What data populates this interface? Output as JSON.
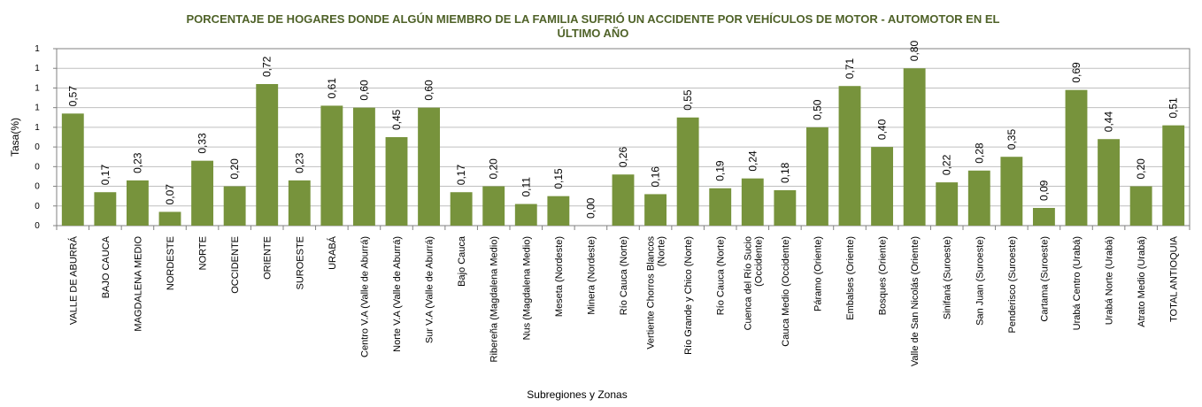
{
  "chart_data": {
    "type": "bar",
    "title_line1": "PORCENTAJE DE HOGARES DONDE ALGÚN MIEMBRO DE LA FAMILIA SUFRIÓ UN ACCIDENTE POR VEHÍCULOS DE MOTOR - AUTOMOTOR  EN EL",
    "title_line2": "ÚLTIMO AÑO",
    "xlabel": "Subregiones y Zonas",
    "ylabel": "Tasa(%)",
    "ylim": [
      0,
      0.9
    ],
    "yticks": [
      0,
      0.1,
      0.2,
      0.3,
      0.4,
      0.5,
      0.6,
      0.7,
      0.8,
      0.9
    ],
    "ytick_labels": [
      "0",
      "0",
      "0",
      "0",
      "0",
      "1",
      "1",
      "1",
      "1",
      "1"
    ],
    "bar_color": "#77933c",
    "grid": true,
    "categories": [
      [
        "VALLE DE ABURRÁ"
      ],
      [
        "BAJO CAUCA"
      ],
      [
        "MAGDALENA MEDIO"
      ],
      [
        "NORDESTE"
      ],
      [
        "NORTE"
      ],
      [
        "OCCIDENTE"
      ],
      [
        "ORIENTE"
      ],
      [
        "SUROESTE"
      ],
      [
        "URABÁ"
      ],
      [
        "Centro V.A (Valle de Aburrá)"
      ],
      [
        "Norte V.A (Valle de Aburrá)"
      ],
      [
        "Sur V.A (Valle de Aburrá)"
      ],
      [
        "Bajo Cauca"
      ],
      [
        "Ribereña  (Magdalena Medio)"
      ],
      [
        "Nus  (Magdalena Medio)"
      ],
      [
        "Meseta  (Nordeste)"
      ],
      [
        "Minera  (Nordeste)"
      ],
      [
        "Río Cauca  (Norte)"
      ],
      [
        "Vertiente Chorros Blancos",
        "(Norte)"
      ],
      [
        "Río Grande y Chico  (Norte)"
      ],
      [
        "Río Cauca (Norte)"
      ],
      [
        "Cuenca del Río Sucio",
        "(Occidente)"
      ],
      [
        "Cauca Medio  (Occidente)"
      ],
      [
        "Páramo  (Oriente)"
      ],
      [
        "Embalses  (Oriente)"
      ],
      [
        "Bosques  (Oriente)"
      ],
      [
        "Valle de San Nicolás  (Oriente)"
      ],
      [
        "Sinifaná  (Suroeste)"
      ],
      [
        "San Juan  (Suroeste)"
      ],
      [
        "Penderisco  (Suroeste)"
      ],
      [
        "Cartama  (Suroeste)"
      ],
      [
        "Urabá Centro  (Urabá)"
      ],
      [
        "Urabá Norte  (Urabá)"
      ],
      [
        "Atrato Medio  (Urabá)"
      ],
      [
        "TOTAL ANTIOQUIA"
      ]
    ],
    "values": [
      0.57,
      0.17,
      0.23,
      0.07,
      0.33,
      0.2,
      0.72,
      0.23,
      0.61,
      0.6,
      0.45,
      0.6,
      0.17,
      0.2,
      0.11,
      0.15,
      0.0,
      0.26,
      0.16,
      0.55,
      0.19,
      0.24,
      0.18,
      0.5,
      0.71,
      0.4,
      0.8,
      0.22,
      0.28,
      0.35,
      0.09,
      0.69,
      0.44,
      0.2,
      0.51
    ],
    "value_labels": [
      "0,57",
      "0,17",
      "0,23",
      "0,07",
      "0,33",
      "0,20",
      "0,72",
      "0,23",
      "0,61",
      "0,60",
      "0,45",
      "0,60",
      "0,17",
      "0,20",
      "0,11",
      "0,15",
      "0,00",
      "0,26",
      "0,16",
      "0,55",
      "0,19",
      "0,24",
      "0,18",
      "0,50",
      "0,71",
      "0,40",
      "0,80",
      "0,22",
      "0,28",
      "0,35",
      "0,09",
      "0,69",
      "0,44",
      "0,20",
      "0,51"
    ]
  }
}
